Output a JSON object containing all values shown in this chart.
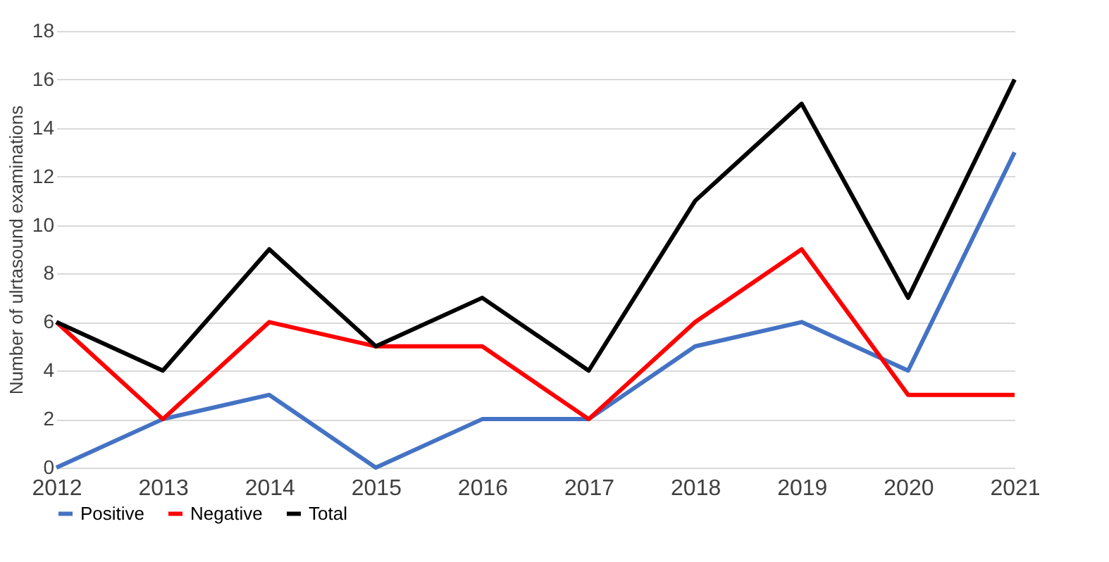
{
  "chart_data": {
    "type": "line",
    "ylabel": "Number of ulrtasound examinations",
    "categories": [
      "2012",
      "2013",
      "2014",
      "2015",
      "2016",
      "2017",
      "2018",
      "2019",
      "2020",
      "2021"
    ],
    "series": [
      {
        "name": "Positive",
        "color": "#4472c4",
        "values": [
          0,
          2,
          3,
          0,
          2,
          2,
          5,
          6,
          4,
          13
        ]
      },
      {
        "name": "Negative",
        "color": "#ff0000",
        "values": [
          6,
          2,
          6,
          5,
          5,
          2,
          6,
          9,
          3,
          3
        ]
      },
      {
        "name": "Total",
        "color": "#000000",
        "values": [
          6,
          4,
          9,
          5,
          7,
          4,
          11,
          15,
          7,
          16
        ]
      }
    ],
    "ylim": [
      0,
      18
    ],
    "yticks": [
      0,
      2,
      4,
      6,
      8,
      10,
      12,
      14,
      16,
      18
    ],
    "grid": "y",
    "legend": "bottom",
    "marker": "none",
    "line_style": "solid"
  }
}
